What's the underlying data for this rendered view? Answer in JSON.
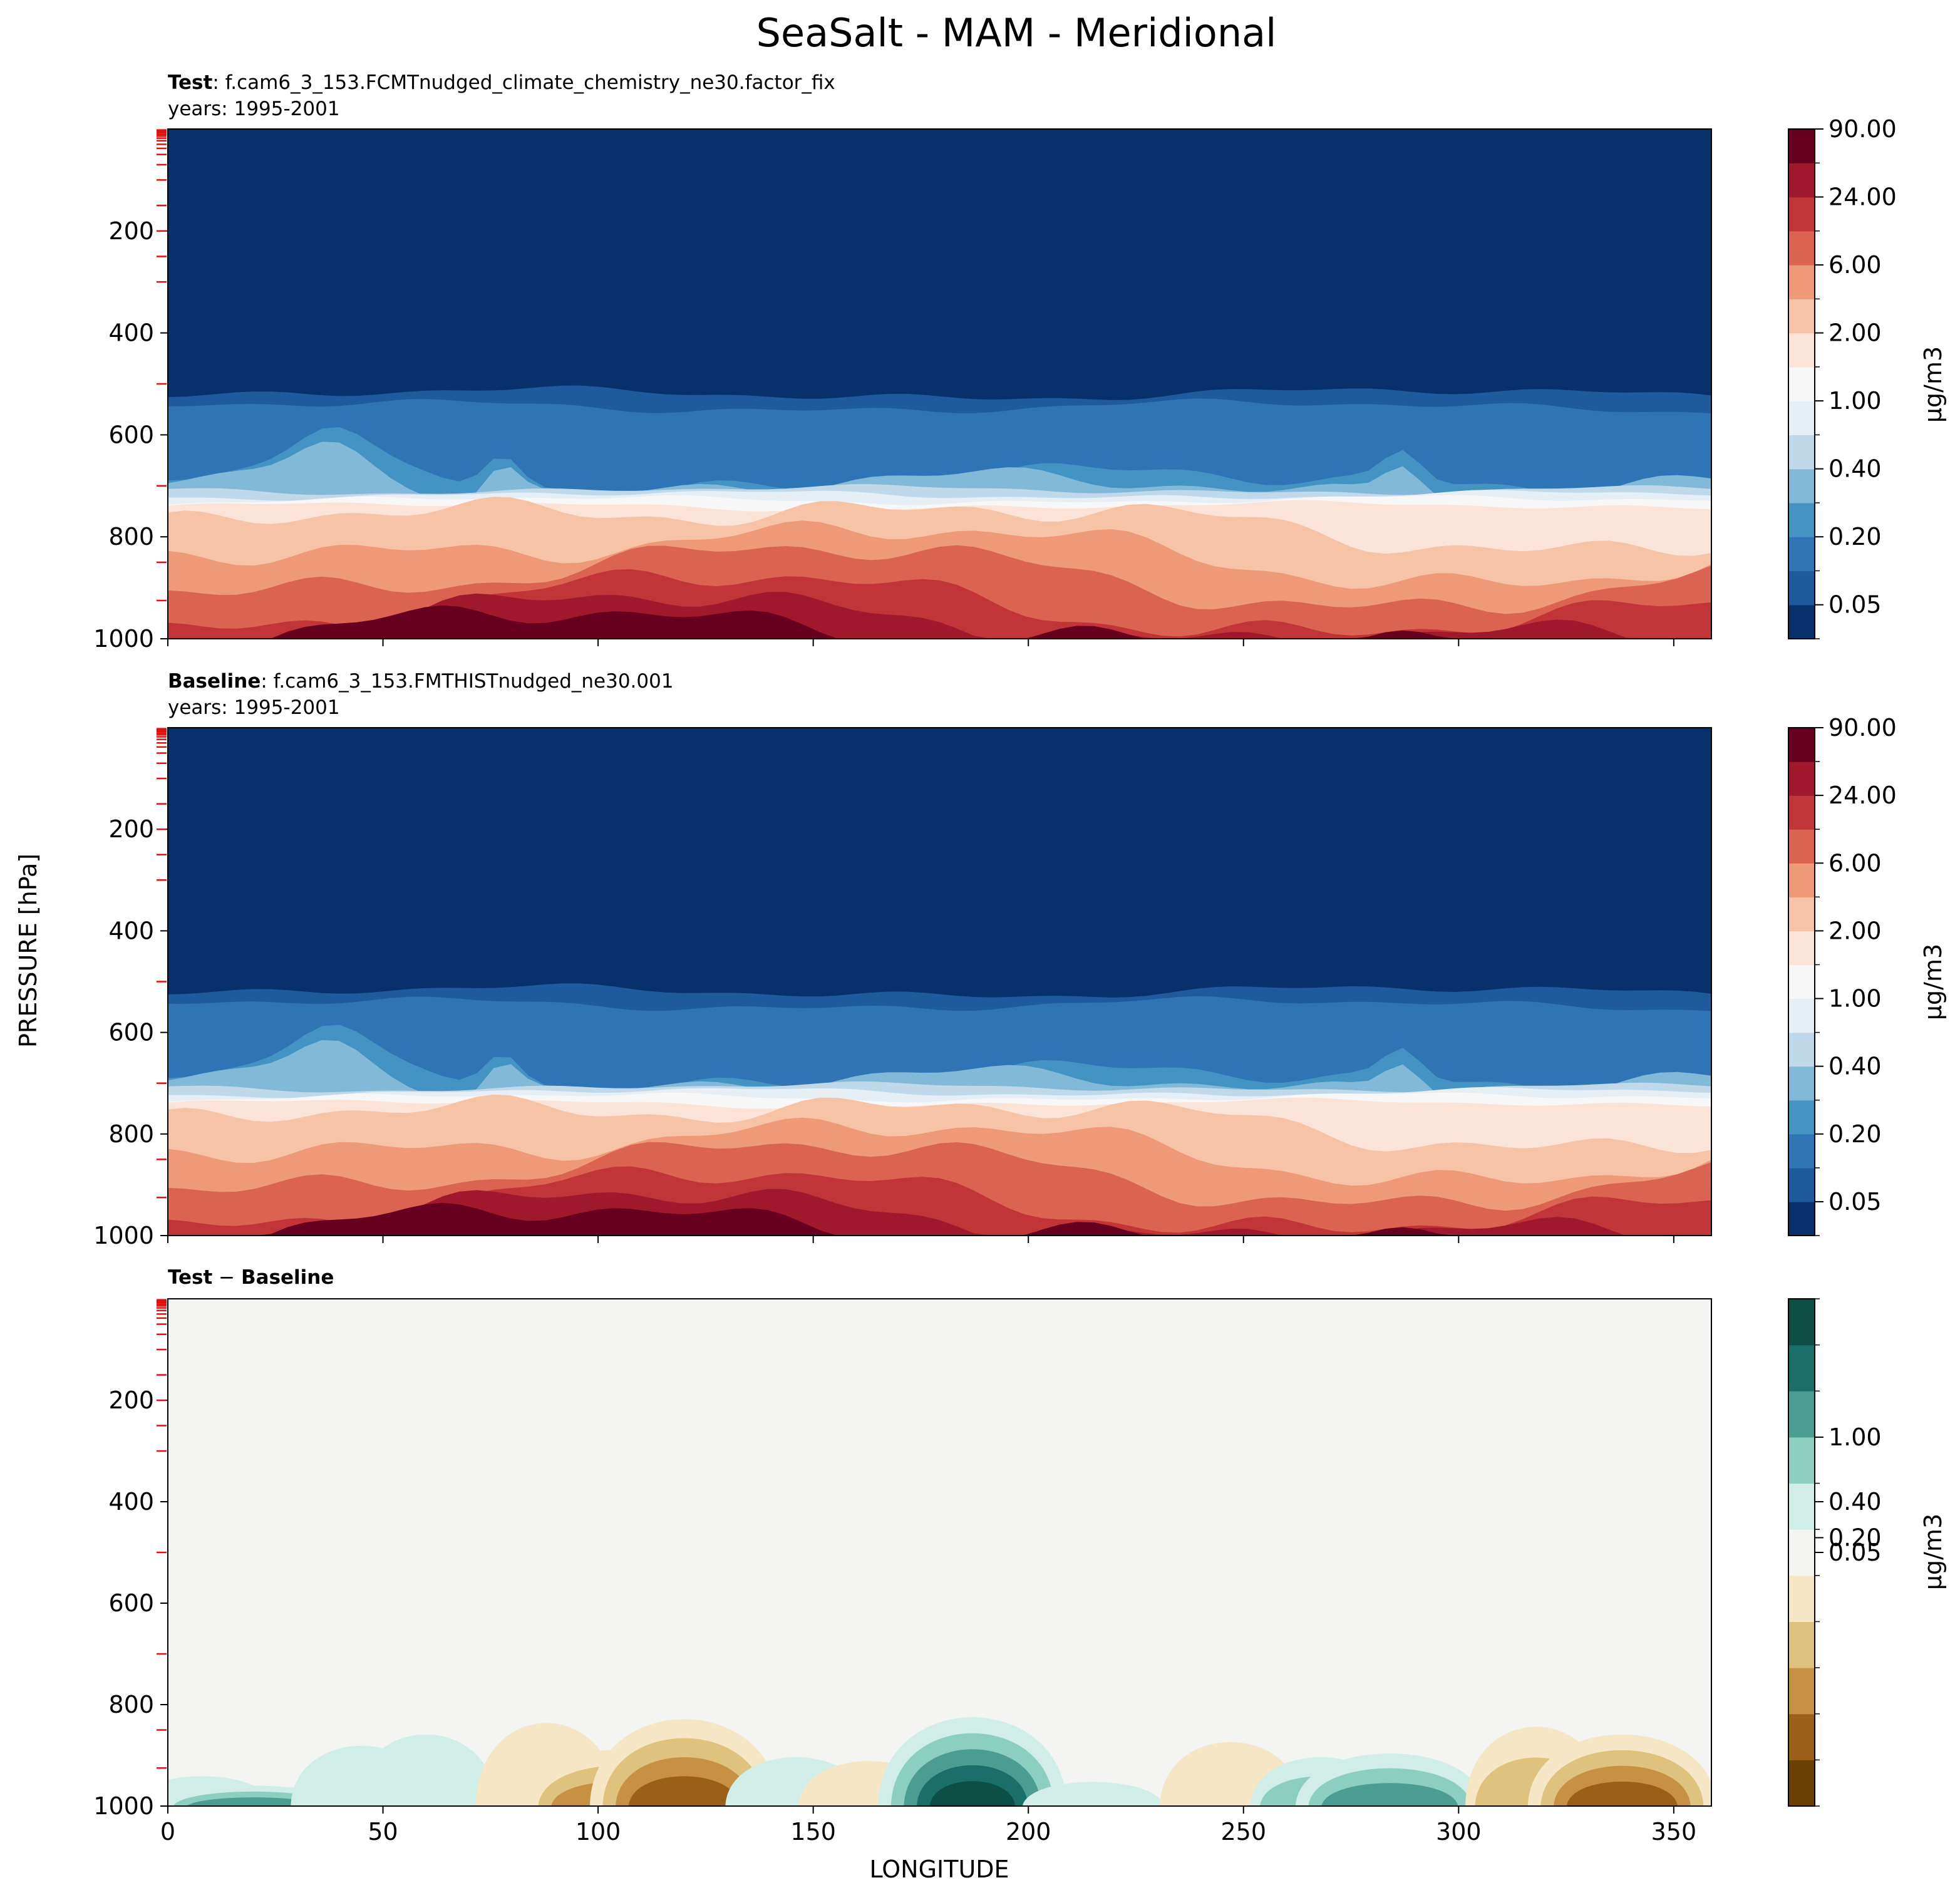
{
  "figure": {
    "title": "SeaSalt - MAM - Meridional",
    "xlabel": "LONGITUDE",
    "ylabel": "PRESSURE [hPa]",
    "units_label": "μg/m3"
  },
  "chart_data": [
    {
      "type": "heatmap",
      "panel": "test",
      "label_bold": "Test",
      "label_text": ": f.cam6_3_153.FCMTnudged_climate_chemistry_ne30.factor_fix",
      "years": "years: 1995-2001",
      "xlim": [
        0,
        358.75
      ],
      "ylim": [
        1000,
        0
      ],
      "xticks": [
        "0",
        "50",
        "100",
        "150",
        "200",
        "250",
        "300",
        "350"
      ],
      "yticks": [
        "200",
        "400",
        "600",
        "800",
        "1000"
      ],
      "colorbar": {
        "units": "μg/m3",
        "ticklabels": [
          "0.05",
          "0.20",
          "0.40",
          "1.00",
          "2.00",
          "6.00",
          "24.00",
          "90.00"
        ],
        "colors": [
          "#08306b",
          "#1f5a9c",
          "#2f75b6",
          "#4393c3",
          "#82b8d8",
          "#bfd9ea",
          "#e5eff5",
          "#f7f7f7",
          "#fbe3d7",
          "#f7c3a7",
          "#ee9a78",
          "#da6451",
          "#c13539",
          "#a0182c",
          "#67001f"
        ]
      },
      "profile_note": "values increase from upper troposphere to surface; maxima near 1000 hPa"
    },
    {
      "type": "heatmap",
      "panel": "baseline",
      "label_bold": "Baseline",
      "label_text": ": f.cam6_3_153.FMTHISTnudged_ne30.001",
      "years": "years: 1995-2001",
      "xlim": [
        0,
        358.75
      ],
      "ylim": [
        1000,
        0
      ],
      "xticks": [
        "0",
        "50",
        "100",
        "150",
        "200",
        "250",
        "300",
        "350"
      ],
      "yticks": [
        "200",
        "400",
        "600",
        "800",
        "1000"
      ],
      "colorbar": {
        "units": "μg/m3",
        "ticklabels": [
          "0.05",
          "0.20",
          "0.40",
          "1.00",
          "2.00",
          "6.00",
          "24.00",
          "90.00"
        ],
        "colors": [
          "#08306b",
          "#1f5a9c",
          "#2f75b6",
          "#4393c3",
          "#82b8d8",
          "#bfd9ea",
          "#e5eff5",
          "#f7f7f7",
          "#fbe3d7",
          "#f7c3a7",
          "#ee9a78",
          "#da6451",
          "#c13539",
          "#a0182c",
          "#67001f"
        ]
      }
    },
    {
      "type": "heatmap",
      "panel": "difference",
      "label_bold": "Test",
      "label_minus": " − ",
      "label_bold2": "Baseline",
      "xlim": [
        0,
        358.75
      ],
      "ylim": [
        1000,
        0
      ],
      "xticks": [
        "0",
        "50",
        "100",
        "150",
        "200",
        "250",
        "300",
        "350"
      ],
      "yticks": [
        "200",
        "400",
        "600",
        "800",
        "1000"
      ],
      "colorbar": {
        "units": "μg/m3",
        "ticklabels": [
          "0.05",
          "0.20",
          "0.40",
          "1.00"
        ],
        "colors": [
          "#6c4204",
          "#9a6017",
          "#c69143",
          "#dfc27d",
          "#f5e7c5",
          "#f4f4f3",
          "#d0ede8",
          "#8ccfc1",
          "#4a9d90",
          "#1a6f68",
          "#0d4f45"
        ]
      },
      "anomalies": [
        {
          "lon": 8,
          "top": 920,
          "level": 1,
          "sign": 1
        },
        {
          "lon": 20,
          "top": 945,
          "level": 3,
          "sign": 1
        },
        {
          "lon": 45,
          "top": 840,
          "level": 1,
          "sign": 1
        },
        {
          "lon": 60,
          "top": 810,
          "level": 1,
          "sign": 1
        },
        {
          "lon": 88,
          "top": 780,
          "level": 1,
          "sign": -1
        },
        {
          "lon": 105,
          "top": 850,
          "level": 3,
          "sign": -1
        },
        {
          "lon": 120,
          "top": 770,
          "level": 4,
          "sign": -1
        },
        {
          "lon": 146,
          "top": 870,
          "level": 1,
          "sign": 1
        },
        {
          "lon": 163,
          "top": 880,
          "level": 1,
          "sign": -1
        },
        {
          "lon": 187,
          "top": 765,
          "level": 5,
          "sign": 1
        },
        {
          "lon": 215,
          "top": 935,
          "level": 1,
          "sign": 1
        },
        {
          "lon": 247,
          "top": 830,
          "level": 1,
          "sign": -1
        },
        {
          "lon": 268,
          "top": 870,
          "level": 2,
          "sign": 1
        },
        {
          "lon": 284,
          "top": 860,
          "level": 3,
          "sign": 1
        },
        {
          "lon": 318,
          "top": 790,
          "level": 2,
          "sign": -1
        },
        {
          "lon": 338,
          "top": 810,
          "level": 4,
          "sign": -1
        }
      ]
    }
  ]
}
